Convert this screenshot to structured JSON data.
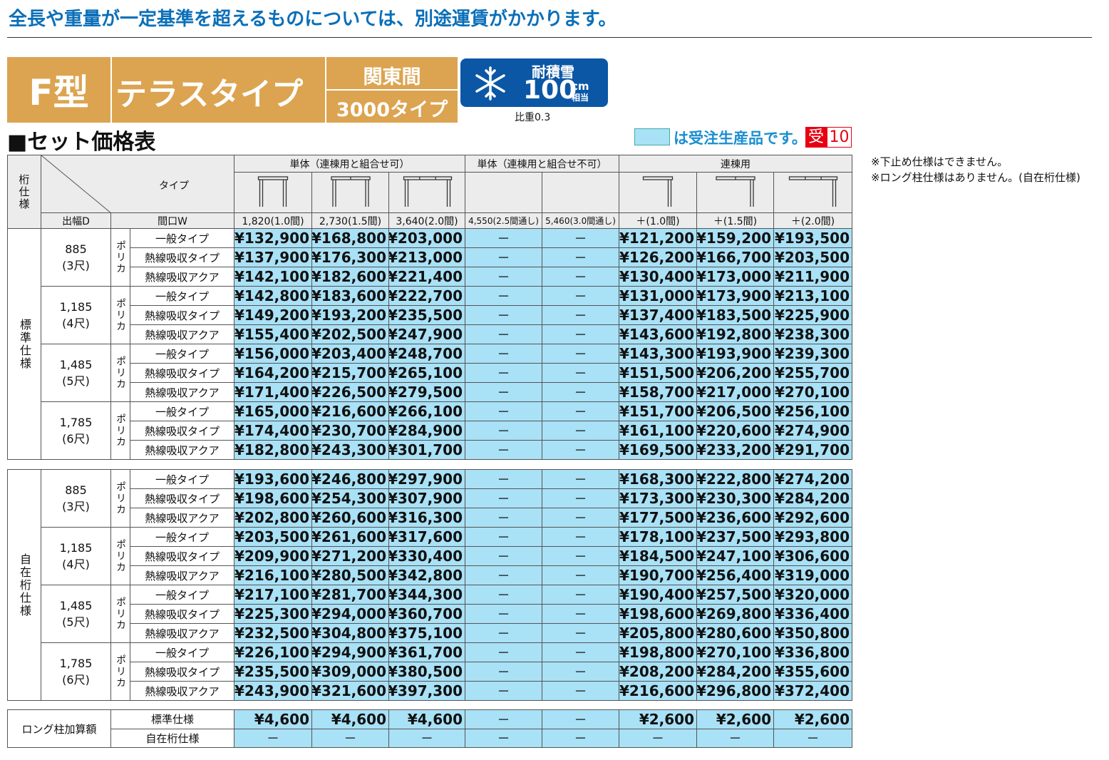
{
  "header": {
    "notice": "全長や重量が一定基準を超えるものについては、別途運賃がかかります。"
  },
  "banner": {
    "model": "F型",
    "type": "テラスタイプ",
    "region": "関東間",
    "subtype": "3000タイプ",
    "snow_label": "耐積雪",
    "snow_value": "100",
    "snow_unit": "cm",
    "snow_unit2": "相当",
    "gravity": "比重0.3"
  },
  "section_title": "■セット価格表",
  "legend": {
    "text": "は受注生産品です。",
    "badge": "受",
    "badge_number": "10"
  },
  "notes": [
    "※下止め仕様はできません。",
    "※ロング柱仕様はありません。(自在桁仕様)"
  ],
  "table": {
    "corner": {
      "spec": "桁仕様",
      "type": "タイプ",
      "depth": "出幅D",
      "width": "間口W"
    },
    "groups": [
      "単体（連棟用と組合せ可）",
      "単体（連棟用と組合せ不可）",
      "連棟用"
    ],
    "widths": [
      "1,820(1.0間)",
      "2,730(1.5間)",
      "3,640(2.0間)",
      "4,550(2.5間通し)",
      "5,460(3.0間通し)",
      "＋(1.0間)",
      "＋(1.5間)",
      "＋(2.0間)"
    ],
    "sections": [
      {
        "name": "標準仕様",
        "depths": [
          {
            "depth": "885",
            "sub": "(3尺)",
            "material": "ポリカ",
            "rows": [
              {
                "type": "一般タイプ",
                "prices": [
                  "¥132,900",
                  "¥168,800",
                  "¥203,000",
                  "－",
                  "－",
                  "¥121,200",
                  "¥159,200",
                  "¥193,500"
                ]
              },
              {
                "type": "熱線吸収タイプ",
                "prices": [
                  "¥137,900",
                  "¥176,300",
                  "¥213,000",
                  "－",
                  "－",
                  "¥126,200",
                  "¥166,700",
                  "¥203,500"
                ]
              },
              {
                "type": "熱線吸収アクア",
                "prices": [
                  "¥142,100",
                  "¥182,600",
                  "¥221,400",
                  "－",
                  "－",
                  "¥130,400",
                  "¥173,000",
                  "¥211,900"
                ]
              }
            ]
          },
          {
            "depth": "1,185",
            "sub": "(4尺)",
            "material": "ポリカ",
            "rows": [
              {
                "type": "一般タイプ",
                "prices": [
                  "¥142,800",
                  "¥183,600",
                  "¥222,700",
                  "－",
                  "－",
                  "¥131,000",
                  "¥173,900",
                  "¥213,100"
                ]
              },
              {
                "type": "熱線吸収タイプ",
                "prices": [
                  "¥149,200",
                  "¥193,200",
                  "¥235,500",
                  "－",
                  "－",
                  "¥137,400",
                  "¥183,500",
                  "¥225,900"
                ]
              },
              {
                "type": "熱線吸収アクア",
                "prices": [
                  "¥155,400",
                  "¥202,500",
                  "¥247,900",
                  "－",
                  "－",
                  "¥143,600",
                  "¥192,800",
                  "¥238,300"
                ]
              }
            ]
          },
          {
            "depth": "1,485",
            "sub": "(5尺)",
            "material": "ポリカ",
            "rows": [
              {
                "type": "一般タイプ",
                "prices": [
                  "¥156,000",
                  "¥203,400",
                  "¥248,700",
                  "－",
                  "－",
                  "¥143,300",
                  "¥193,900",
                  "¥239,300"
                ]
              },
              {
                "type": "熱線吸収タイプ",
                "prices": [
                  "¥164,200",
                  "¥215,700",
                  "¥265,100",
                  "－",
                  "－",
                  "¥151,500",
                  "¥206,200",
                  "¥255,700"
                ]
              },
              {
                "type": "熱線吸収アクア",
                "prices": [
                  "¥171,400",
                  "¥226,500",
                  "¥279,500",
                  "－",
                  "－",
                  "¥158,700",
                  "¥217,000",
                  "¥270,100"
                ]
              }
            ]
          },
          {
            "depth": "1,785",
            "sub": "(6尺)",
            "material": "ポリカ",
            "rows": [
              {
                "type": "一般タイプ",
                "prices": [
                  "¥165,000",
                  "¥216,600",
                  "¥266,100",
                  "－",
                  "－",
                  "¥151,700",
                  "¥206,500",
                  "¥256,100"
                ]
              },
              {
                "type": "熱線吸収タイプ",
                "prices": [
                  "¥174,400",
                  "¥230,700",
                  "¥284,900",
                  "－",
                  "－",
                  "¥161,100",
                  "¥220,600",
                  "¥274,900"
                ]
              },
              {
                "type": "熱線吸収アクア",
                "prices": [
                  "¥182,800",
                  "¥243,300",
                  "¥301,700",
                  "－",
                  "－",
                  "¥169,500",
                  "¥233,200",
                  "¥291,700"
                ]
              }
            ]
          }
        ]
      },
      {
        "name": "自在桁仕様",
        "depths": [
          {
            "depth": "885",
            "sub": "(3尺)",
            "material": "ポリカ",
            "rows": [
              {
                "type": "一般タイプ",
                "prices": [
                  "¥193,600",
                  "¥246,800",
                  "¥297,900",
                  "－",
                  "－",
                  "¥168,300",
                  "¥222,800",
                  "¥274,200"
                ]
              },
              {
                "type": "熱線吸収タイプ",
                "prices": [
                  "¥198,600",
                  "¥254,300",
                  "¥307,900",
                  "－",
                  "－",
                  "¥173,300",
                  "¥230,300",
                  "¥284,200"
                ]
              },
              {
                "type": "熱線吸収アクア",
                "prices": [
                  "¥202,800",
                  "¥260,600",
                  "¥316,300",
                  "－",
                  "－",
                  "¥177,500",
                  "¥236,600",
                  "¥292,600"
                ]
              }
            ]
          },
          {
            "depth": "1,185",
            "sub": "(4尺)",
            "material": "ポリカ",
            "rows": [
              {
                "type": "一般タイプ",
                "prices": [
                  "¥203,500",
                  "¥261,600",
                  "¥317,600",
                  "－",
                  "－",
                  "¥178,100",
                  "¥237,500",
                  "¥293,800"
                ]
              },
              {
                "type": "熱線吸収タイプ",
                "prices": [
                  "¥209,900",
                  "¥271,200",
                  "¥330,400",
                  "－",
                  "－",
                  "¥184,500",
                  "¥247,100",
                  "¥306,600"
                ]
              },
              {
                "type": "熱線吸収アクア",
                "prices": [
                  "¥216,100",
                  "¥280,500",
                  "¥342,800",
                  "－",
                  "－",
                  "¥190,700",
                  "¥256,400",
                  "¥319,000"
                ]
              }
            ]
          },
          {
            "depth": "1,485",
            "sub": "(5尺)",
            "material": "ポリカ",
            "rows": [
              {
                "type": "一般タイプ",
                "prices": [
                  "¥217,100",
                  "¥281,700",
                  "¥344,300",
                  "－",
                  "－",
                  "¥190,400",
                  "¥257,500",
                  "¥320,000"
                ]
              },
              {
                "type": "熱線吸収タイプ",
                "prices": [
                  "¥225,300",
                  "¥294,000",
                  "¥360,700",
                  "－",
                  "－",
                  "¥198,600",
                  "¥269,800",
                  "¥336,400"
                ]
              },
              {
                "type": "熱線吸収アクア",
                "prices": [
                  "¥232,500",
                  "¥304,800",
                  "¥375,100",
                  "－",
                  "－",
                  "¥205,800",
                  "¥280,600",
                  "¥350,800"
                ]
              }
            ]
          },
          {
            "depth": "1,785",
            "sub": "(6尺)",
            "material": "ポリカ",
            "rows": [
              {
                "type": "一般タイプ",
                "prices": [
                  "¥226,100",
                  "¥294,900",
                  "¥361,700",
                  "－",
                  "－",
                  "¥198,800",
                  "¥270,100",
                  "¥336,800"
                ]
              },
              {
                "type": "熱線吸収タイプ",
                "prices": [
                  "¥235,500",
                  "¥309,000",
                  "¥380,500",
                  "－",
                  "－",
                  "¥208,200",
                  "¥284,200",
                  "¥355,600"
                ]
              },
              {
                "type": "熱線吸収アクア",
                "prices": [
                  "¥243,900",
                  "¥321,600",
                  "¥397,300",
                  "－",
                  "－",
                  "¥216,600",
                  "¥296,800",
                  "¥372,400"
                ]
              }
            ]
          }
        ]
      }
    ],
    "long": {
      "label": "ロング柱加算額",
      "rows": [
        {
          "name": "標準仕様",
          "prices": [
            "¥4,600",
            "¥4,600",
            "¥4,600",
            "－",
            "－",
            "¥2,600",
            "¥2,600",
            "¥2,600"
          ]
        },
        {
          "name": "自在桁仕様",
          "prices": [
            "－",
            "－",
            "－",
            "－",
            "－",
            "－",
            "－",
            "－"
          ]
        }
      ]
    }
  }
}
